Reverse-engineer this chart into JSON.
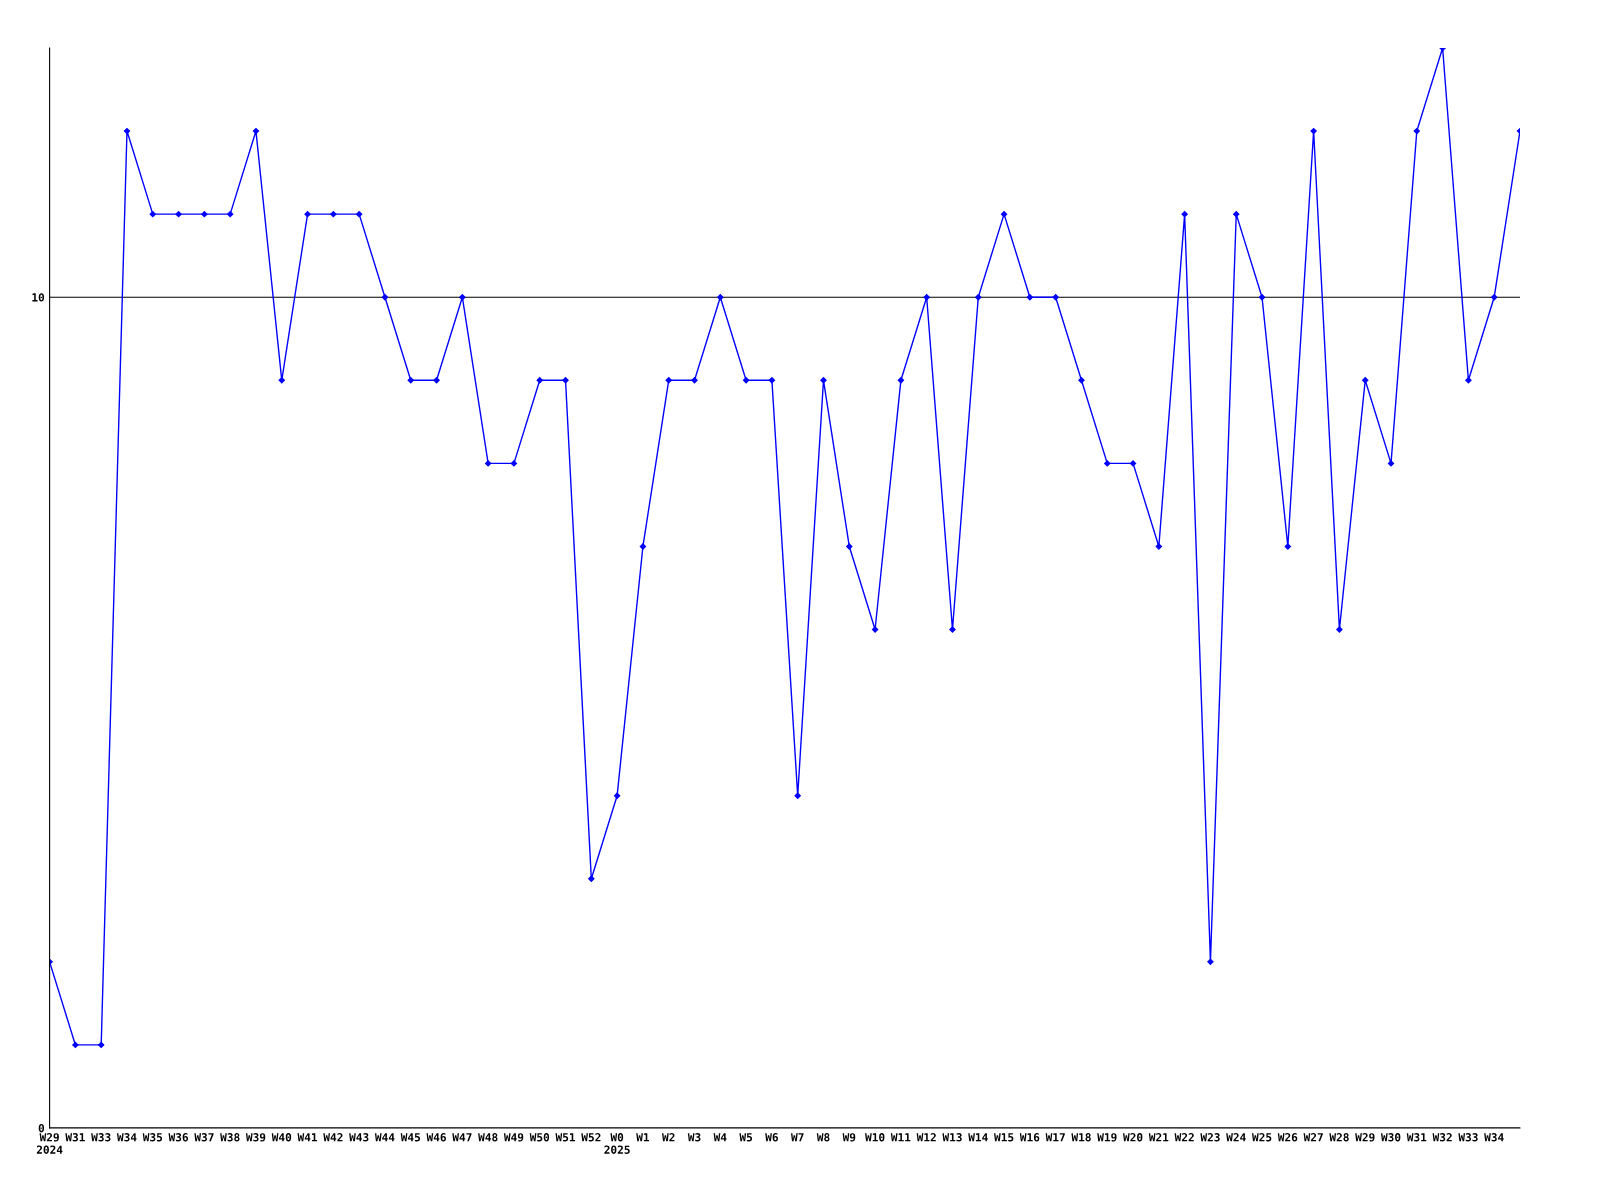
{
  "chart_data": {
    "type": "line",
    "categories": [
      "W29\n2024",
      "W31",
      "W33",
      "W34",
      "W35",
      "W36",
      "W37",
      "W38",
      "W39",
      "W40",
      "W41",
      "W42",
      "W43",
      "W44",
      "W45",
      "W46",
      "W47",
      "W48",
      "W49",
      "W50",
      "W51",
      "W52",
      "W0\n2025",
      "W1",
      "W2",
      "W3",
      "W4",
      "W5",
      "W6",
      "W7",
      "W8",
      "W9",
      "W10",
      "W11",
      "W12",
      "W13",
      "W14",
      "W15",
      "W16",
      "W17",
      "W18",
      "W19",
      "W20",
      "W21",
      "W22",
      "W23",
      "W24",
      "W25",
      "W26",
      "W27",
      "W28",
      "W29",
      "W30",
      "W31",
      "W32",
      "W33",
      "W34",
      null
    ],
    "series": [
      {
        "color": "#0000ff",
        "values": [
          2,
          1,
          1,
          12,
          11,
          11,
          11,
          11,
          12,
          9,
          11,
          11,
          11,
          10,
          9,
          9,
          10,
          8,
          8,
          9,
          9,
          3,
          4,
          7,
          9,
          9,
          10,
          9,
          9,
          4,
          9,
          7,
          6,
          9,
          10,
          6,
          10,
          11,
          10,
          10,
          9,
          8,
          8,
          7,
          11,
          2,
          11,
          10,
          7,
          12,
          6,
          9,
          8,
          12,
          13,
          9,
          10,
          12
        ]
      }
    ],
    "ylim": [
      0,
      13
    ],
    "yticks": [
      0,
      10
    ],
    "grid": "y",
    "marker": "diamond",
    "line_style": "solid"
  }
}
